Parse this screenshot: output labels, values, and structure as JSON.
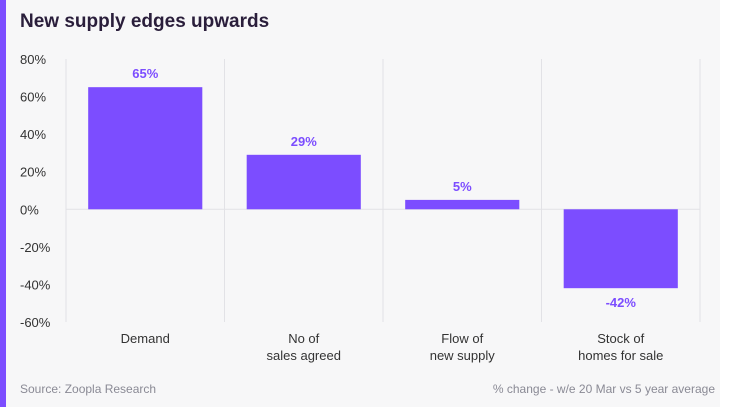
{
  "title": "New supply edges upwards",
  "footer": {
    "source": "Source: Zoopla Research",
    "note": "% change - w/e 20 Mar vs 5 year average"
  },
  "colors": {
    "accent": "#7c4dff",
    "bar": "#7c4dff",
    "value_label": "#7c4dff",
    "title": "#2a1e3b",
    "axis_text": "#333333",
    "grid": "#e2e2e6"
  },
  "chart_data": {
    "type": "bar",
    "categories": [
      [
        "Demand"
      ],
      [
        "No of",
        "sales agreed"
      ],
      [
        "Flow of",
        "new supply"
      ],
      [
        "Stock of",
        "homes for sale"
      ]
    ],
    "values": [
      65,
      29,
      5,
      -42
    ],
    "value_labels": [
      "65%",
      "29%",
      "5%",
      "-42%"
    ],
    "ylim": [
      -60,
      80
    ],
    "yticks": [
      80,
      60,
      40,
      20,
      0,
      -20,
      -40,
      -60
    ],
    "ytick_labels": [
      "80%",
      "60%",
      "40%",
      "20%",
      "0%",
      "-20%",
      "-40%",
      "-60%"
    ],
    "grid": "vertical separators and zero line",
    "legend": "none"
  }
}
